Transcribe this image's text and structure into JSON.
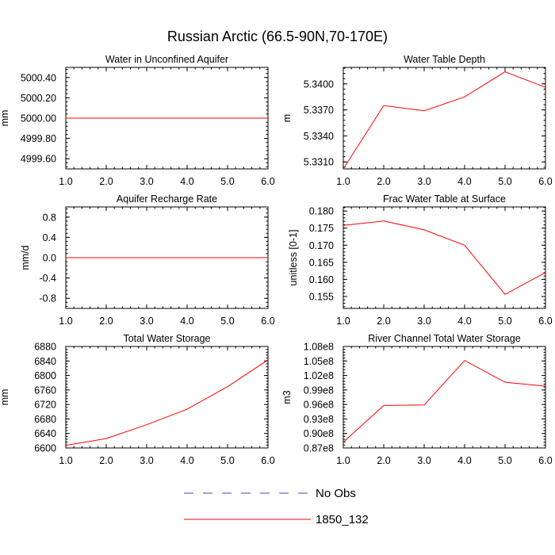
{
  "title": "Russian Arctic (66.5-90N,70-170E)",
  "colors": {
    "series": "#ff0000",
    "obs": "#4a4ab4",
    "axis": "#000000"
  },
  "legend": [
    {
      "label": "No Obs",
      "style": "dashed",
      "color": "#4a4ab4"
    },
    {
      "label": "1850_132",
      "style": "solid",
      "color": "#ff0000"
    }
  ],
  "chart_data": [
    {
      "type": "line",
      "title": "Water in Unconfined Aquifer",
      "ylabel": "mm",
      "x": [
        1,
        2,
        3,
        4,
        5,
        6
      ],
      "xlim": [
        1,
        6
      ],
      "xticks": [
        "1.0",
        "2.0",
        "3.0",
        "4.0",
        "5.0",
        "6.0"
      ],
      "ylim": [
        4999.5,
        5000.5
      ],
      "yticks": [
        {
          "value": 4999.6,
          "label": "4999.60"
        },
        {
          "value": 4999.8,
          "label": "4999.80"
        },
        {
          "value": 5000.0,
          "label": "5000.00"
        },
        {
          "value": 5000.2,
          "label": "5000.20"
        },
        {
          "value": 5000.4,
          "label": "5000.40"
        }
      ],
      "series": [
        {
          "name": "1850_132",
          "values": [
            5000,
            5000,
            5000,
            5000,
            5000,
            5000
          ]
        }
      ]
    },
    {
      "type": "line",
      "title": "Water Table Depth",
      "ylabel": "m",
      "x": [
        1,
        2,
        3,
        4,
        5,
        6
      ],
      "xlim": [
        1,
        6
      ],
      "xticks": [
        "1.0",
        "2.0",
        "3.0",
        "4.0",
        "5.0",
        "6.0"
      ],
      "ylim": [
        5.3302,
        5.3419
      ],
      "yticks": [
        {
          "value": 5.331,
          "label": "5.3310"
        },
        {
          "value": 5.334,
          "label": "5.3340"
        },
        {
          "value": 5.337,
          "label": "5.3370"
        },
        {
          "value": 5.34,
          "label": "5.3400"
        }
      ],
      "series": [
        {
          "name": "1850_132",
          "values": [
            5.3302,
            5.3375,
            5.3369,
            5.3385,
            5.3414,
            5.3396
          ]
        }
      ]
    },
    {
      "type": "line",
      "title": "Aquifer Recharge Rate",
      "ylabel": "mm/d",
      "x": [
        1,
        2,
        3,
        4,
        5,
        6
      ],
      "xlim": [
        1,
        6
      ],
      "xticks": [
        "1.0",
        "2.0",
        "3.0",
        "4.0",
        "5.0",
        "6.0"
      ],
      "ylim": [
        -1.0,
        1.0
      ],
      "yticks": [
        {
          "value": -0.8,
          "label": "-0.8"
        },
        {
          "value": -0.4,
          "label": "-0.4"
        },
        {
          "value": 0.0,
          "label": "0.0"
        },
        {
          "value": 0.4,
          "label": "0.4"
        },
        {
          "value": 0.8,
          "label": "0.8"
        }
      ],
      "series": [
        {
          "name": "1850_132",
          "values": [
            0,
            0,
            0,
            0,
            0,
            0
          ]
        }
      ]
    },
    {
      "type": "line",
      "title": "Frac Water Table at Surface",
      "ylabel": "unitless [0-1]",
      "x": [
        1,
        2,
        3,
        4,
        5,
        6
      ],
      "xlim": [
        1,
        6
      ],
      "xticks": [
        "1.0",
        "2.0",
        "3.0",
        "4.0",
        "5.0",
        "6.0"
      ],
      "ylim": [
        0.1515,
        0.1812
      ],
      "yticks": [
        {
          "value": 0.155,
          "label": "0.155"
        },
        {
          "value": 0.16,
          "label": "0.160"
        },
        {
          "value": 0.165,
          "label": "0.165"
        },
        {
          "value": 0.17,
          "label": "0.170"
        },
        {
          "value": 0.175,
          "label": "0.175"
        },
        {
          "value": 0.18,
          "label": "0.180"
        }
      ],
      "series": [
        {
          "name": "1850_132",
          "values": [
            0.1758,
            0.1771,
            0.1745,
            0.17,
            0.1556,
            0.162
          ]
        }
      ]
    },
    {
      "type": "line",
      "title": "Total Water Storage",
      "ylabel": "mm",
      "x": [
        1,
        2,
        3,
        4,
        5,
        6
      ],
      "xlim": [
        1,
        6
      ],
      "xticks": [
        "1.0",
        "2.0",
        "3.0",
        "4.0",
        "5.0",
        "6.0"
      ],
      "ylim": [
        6600,
        6880
      ],
      "yticks": [
        {
          "value": 6600,
          "label": "6600"
        },
        {
          "value": 6640,
          "label": "6640"
        },
        {
          "value": 6680,
          "label": "6680"
        },
        {
          "value": 6720,
          "label": "6720"
        },
        {
          "value": 6760,
          "label": "6760"
        },
        {
          "value": 6800,
          "label": "6800"
        },
        {
          "value": 6840,
          "label": "6840"
        },
        {
          "value": 6880,
          "label": "6880"
        }
      ],
      "series": [
        {
          "name": "1850_132",
          "values": [
            6607,
            6626,
            6664,
            6707,
            6769,
            6843
          ]
        }
      ]
    },
    {
      "type": "line",
      "title": "River Channel Total Water Storage",
      "ylabel": "m3",
      "x": [
        1,
        2,
        3,
        4,
        5,
        6
      ],
      "xlim": [
        1,
        6
      ],
      "xticks": [
        "1.0",
        "2.0",
        "3.0",
        "4.0",
        "5.0",
        "6.0"
      ],
      "ylim": [
        87000000,
        108000000
      ],
      "yticks": [
        {
          "value": 87000000,
          "label": "0.87e8"
        },
        {
          "value": 90000000,
          "label": "0.90e8"
        },
        {
          "value": 93000000,
          "label": "0.93e8"
        },
        {
          "value": 96000000,
          "label": "0.96e8"
        },
        {
          "value": 99000000,
          "label": "0.99e8"
        },
        {
          "value": 102000000,
          "label": "1.02e8"
        },
        {
          "value": 105000000,
          "label": "1.05e8"
        },
        {
          "value": 108000000,
          "label": "1.08e8"
        }
      ],
      "series": [
        {
          "name": "1850_132",
          "values": [
            88200000,
            95800000,
            95900000,
            105100000,
            100600000,
            99800000
          ]
        }
      ]
    }
  ]
}
